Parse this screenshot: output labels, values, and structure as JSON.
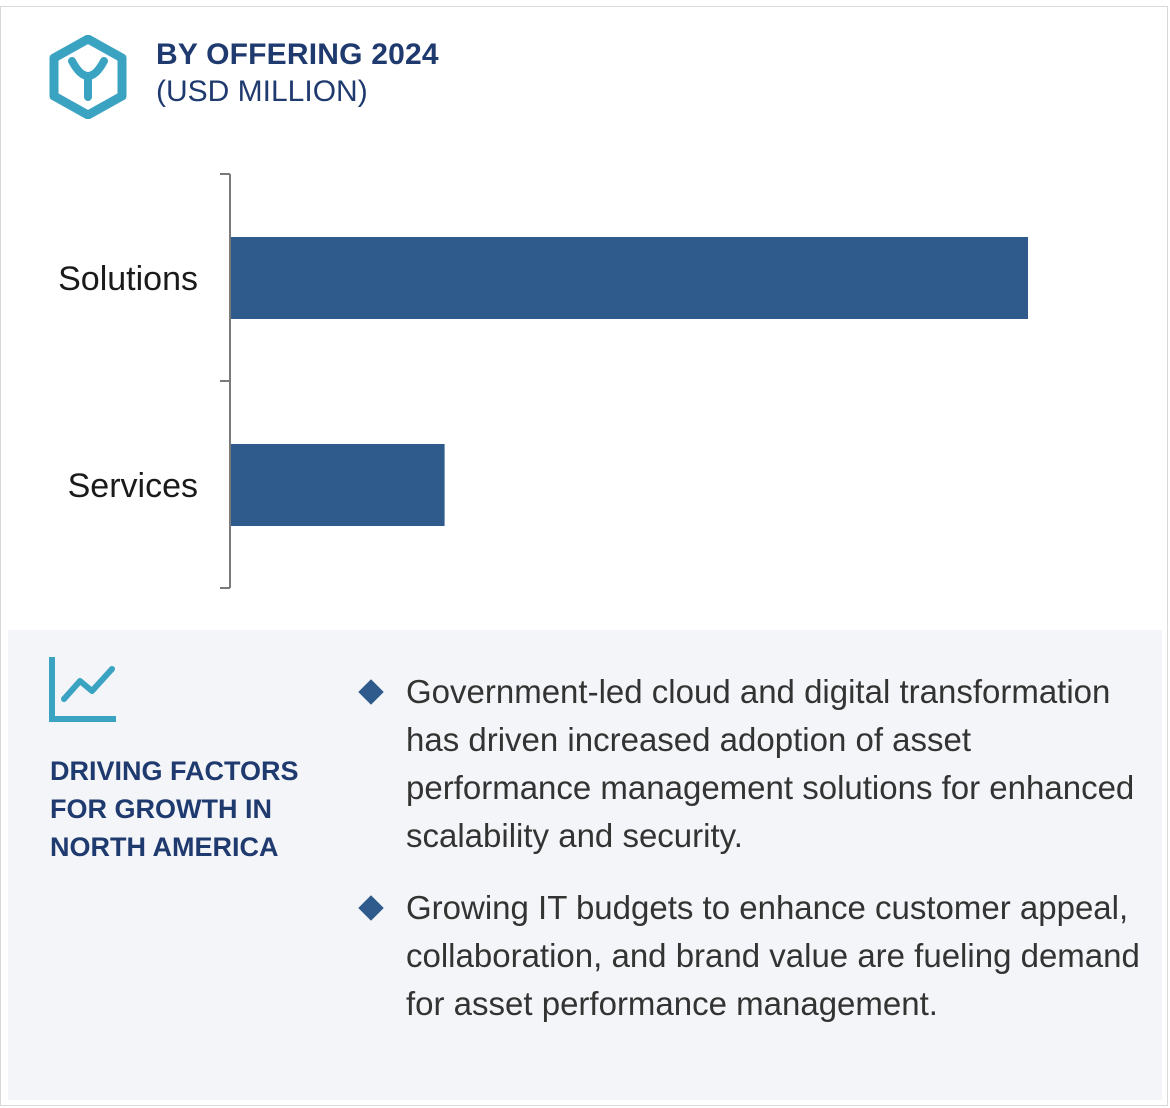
{
  "header": {
    "title_line1": "BY  OFFERING 2024",
    "title_line2": "(USD MILLION)",
    "logo_icon": "hexagon-y-logo-icon",
    "accent_color": "#3aa3c2"
  },
  "chart_data": {
    "type": "bar",
    "orientation": "horizontal",
    "categories": [
      "Solutions",
      "Services"
    ],
    "values": [
      100,
      26.8
    ],
    "xlim": [
      0,
      100
    ],
    "grid": false,
    "axis_labels_shown": false,
    "bar_color": "#2e5b8c",
    "xlabel": "",
    "ylabel": ""
  },
  "drivers": {
    "icon": "trend-line-chart-icon",
    "title": "DRIVING FACTORS FOR GROWTH IN NORTH AMERICA",
    "bullet_color": "#2e5b8c",
    "items": [
      "Government-led cloud and digital transformation has driven increased adoption of asset performance management solutions for enhanced scalability and security.",
      "Growing IT budgets to enhance customer appeal, collaboration, and brand value are fueling demand for asset performance management."
    ]
  }
}
